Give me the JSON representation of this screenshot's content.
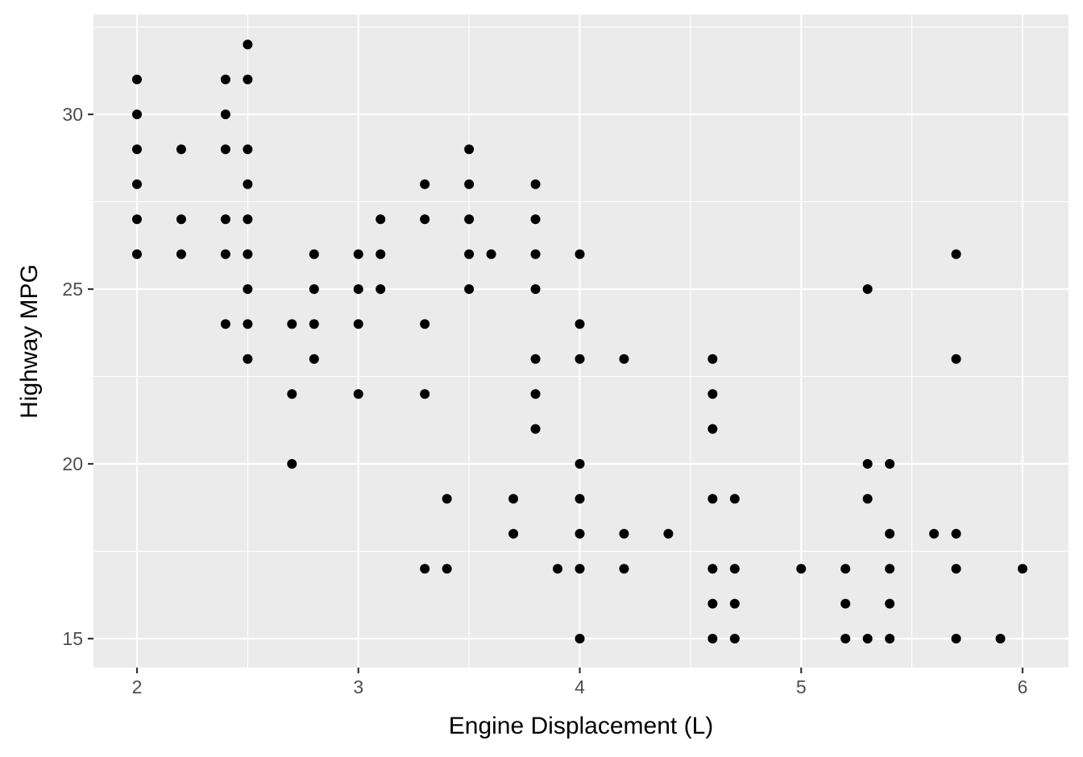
{
  "chart_data": {
    "type": "scatter",
    "title": "",
    "xlabel": "Engine Displacement (L)",
    "ylabel": "Highway MPG",
    "xlim": [
      1.8,
      6.2
    ],
    "ylim": [
      14.3,
      32.6
    ],
    "x_ticks": [
      2,
      3,
      4,
      5,
      6
    ],
    "y_ticks": [
      15,
      20,
      25,
      30
    ],
    "x_minor": [
      2.5,
      3.5,
      4.5,
      5.5
    ],
    "y_minor": [
      17.5,
      22.5,
      27.5,
      32.5
    ],
    "grid": true,
    "legend": "none",
    "colors": {
      "panel": "#ebebeb",
      "grid": "#ffffff",
      "point": "#000000",
      "tick_text": "#4d4d4d",
      "tick_mark": "#333333"
    },
    "points": [
      [
        2.0,
        31
      ],
      [
        2.0,
        30
      ],
      [
        2.0,
        29
      ],
      [
        2.0,
        28
      ],
      [
        2.0,
        27
      ],
      [
        2.0,
        26
      ],
      [
        2.2,
        29
      ],
      [
        2.2,
        27
      ],
      [
        2.2,
        26
      ],
      [
        2.4,
        31
      ],
      [
        2.4,
        30
      ],
      [
        2.4,
        29
      ],
      [
        2.4,
        27
      ],
      [
        2.4,
        26
      ],
      [
        2.4,
        24
      ],
      [
        2.5,
        32
      ],
      [
        2.5,
        31
      ],
      [
        2.5,
        29
      ],
      [
        2.5,
        28
      ],
      [
        2.5,
        27
      ],
      [
        2.5,
        26
      ],
      [
        2.5,
        25
      ],
      [
        2.5,
        24
      ],
      [
        2.5,
        23
      ],
      [
        2.7,
        24
      ],
      [
        2.7,
        22
      ],
      [
        2.7,
        20
      ],
      [
        2.8,
        26
      ],
      [
        2.8,
        25
      ],
      [
        2.8,
        24
      ],
      [
        2.8,
        23
      ],
      [
        3.0,
        26
      ],
      [
        3.0,
        25
      ],
      [
        3.0,
        24
      ],
      [
        3.0,
        22
      ],
      [
        3.1,
        27
      ],
      [
        3.1,
        26
      ],
      [
        3.1,
        25
      ],
      [
        3.3,
        28
      ],
      [
        3.3,
        27
      ],
      [
        3.3,
        24
      ],
      [
        3.3,
        22
      ],
      [
        3.3,
        17
      ],
      [
        3.4,
        19
      ],
      [
        3.4,
        17
      ],
      [
        3.5,
        29
      ],
      [
        3.5,
        28
      ],
      [
        3.5,
        27
      ],
      [
        3.5,
        26
      ],
      [
        3.5,
        25
      ],
      [
        3.6,
        26
      ],
      [
        3.7,
        19
      ],
      [
        3.7,
        18
      ],
      [
        3.8,
        28
      ],
      [
        3.8,
        27
      ],
      [
        3.8,
        26
      ],
      [
        3.8,
        25
      ],
      [
        3.8,
        23
      ],
      [
        3.8,
        22
      ],
      [
        3.8,
        21
      ],
      [
        3.9,
        17
      ],
      [
        4.0,
        26
      ],
      [
        4.0,
        24
      ],
      [
        4.0,
        23
      ],
      [
        4.0,
        20
      ],
      [
        4.0,
        19
      ],
      [
        4.0,
        18
      ],
      [
        4.0,
        17
      ],
      [
        4.0,
        15
      ],
      [
        4.2,
        23
      ],
      [
        4.2,
        18
      ],
      [
        4.2,
        17
      ],
      [
        4.4,
        18
      ],
      [
        4.6,
        23
      ],
      [
        4.6,
        22
      ],
      [
        4.6,
        21
      ],
      [
        4.6,
        19
      ],
      [
        4.6,
        17
      ],
      [
        4.6,
        16
      ],
      [
        4.6,
        15
      ],
      [
        4.7,
        19
      ],
      [
        4.7,
        17
      ],
      [
        4.7,
        16
      ],
      [
        4.7,
        15
      ],
      [
        5.0,
        17
      ],
      [
        5.2,
        17
      ],
      [
        5.2,
        16
      ],
      [
        5.2,
        15
      ],
      [
        5.3,
        25
      ],
      [
        5.3,
        20
      ],
      [
        5.3,
        19
      ],
      [
        5.3,
        15
      ],
      [
        5.4,
        20
      ],
      [
        5.4,
        18
      ],
      [
        5.4,
        17
      ],
      [
        5.4,
        16
      ],
      [
        5.4,
        15
      ],
      [
        5.6,
        18
      ],
      [
        5.7,
        26
      ],
      [
        5.7,
        23
      ],
      [
        5.7,
        18
      ],
      [
        5.7,
        17
      ],
      [
        5.7,
        15
      ],
      [
        5.9,
        15
      ],
      [
        6.0,
        17
      ]
    ]
  }
}
